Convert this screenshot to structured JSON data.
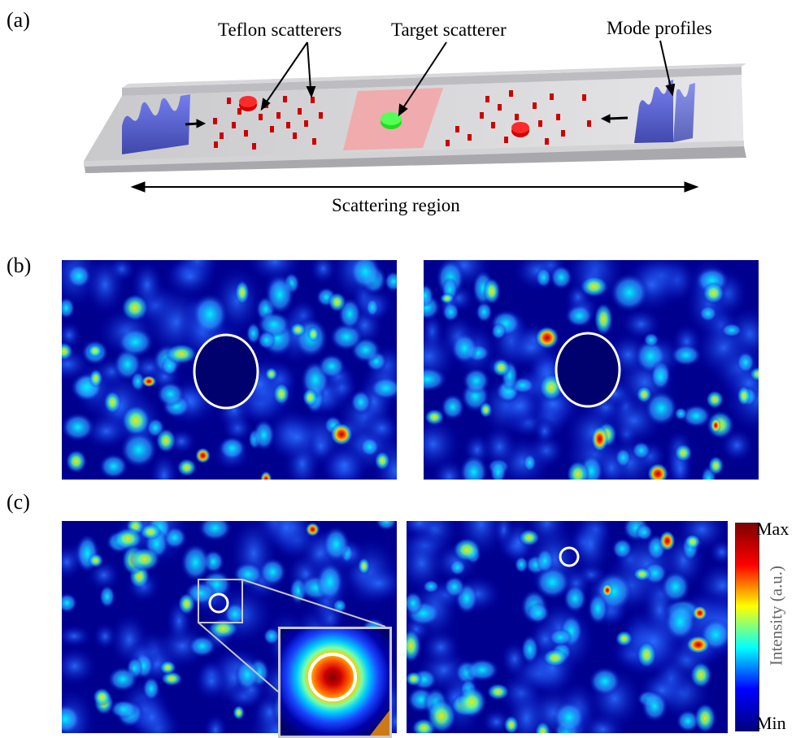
{
  "panel_labels": {
    "a": "(a)",
    "b": "(b)",
    "c": "(c)"
  },
  "annotations": {
    "teflon": "Teflon scatterers",
    "target": "Target scatterer",
    "modes": "Mode profiles",
    "region": "Scattering region"
  },
  "colorbar": {
    "max_label": "Max",
    "min_label": "Min",
    "axis_label": "Intensity (a.u.)",
    "colors": [
      "#00007f",
      "#0000ff",
      "#00ffff",
      "#ffff00",
      "#ff0000",
      "#7f0000"
    ]
  },
  "colors": {
    "waveguide": "#c8c8cc",
    "scatterer": "#d40000",
    "target": "#22dd22",
    "target_zone": "#f4a3a6",
    "mode_profile": "#4a56d8",
    "marker_circle": "#ffffff"
  }
}
